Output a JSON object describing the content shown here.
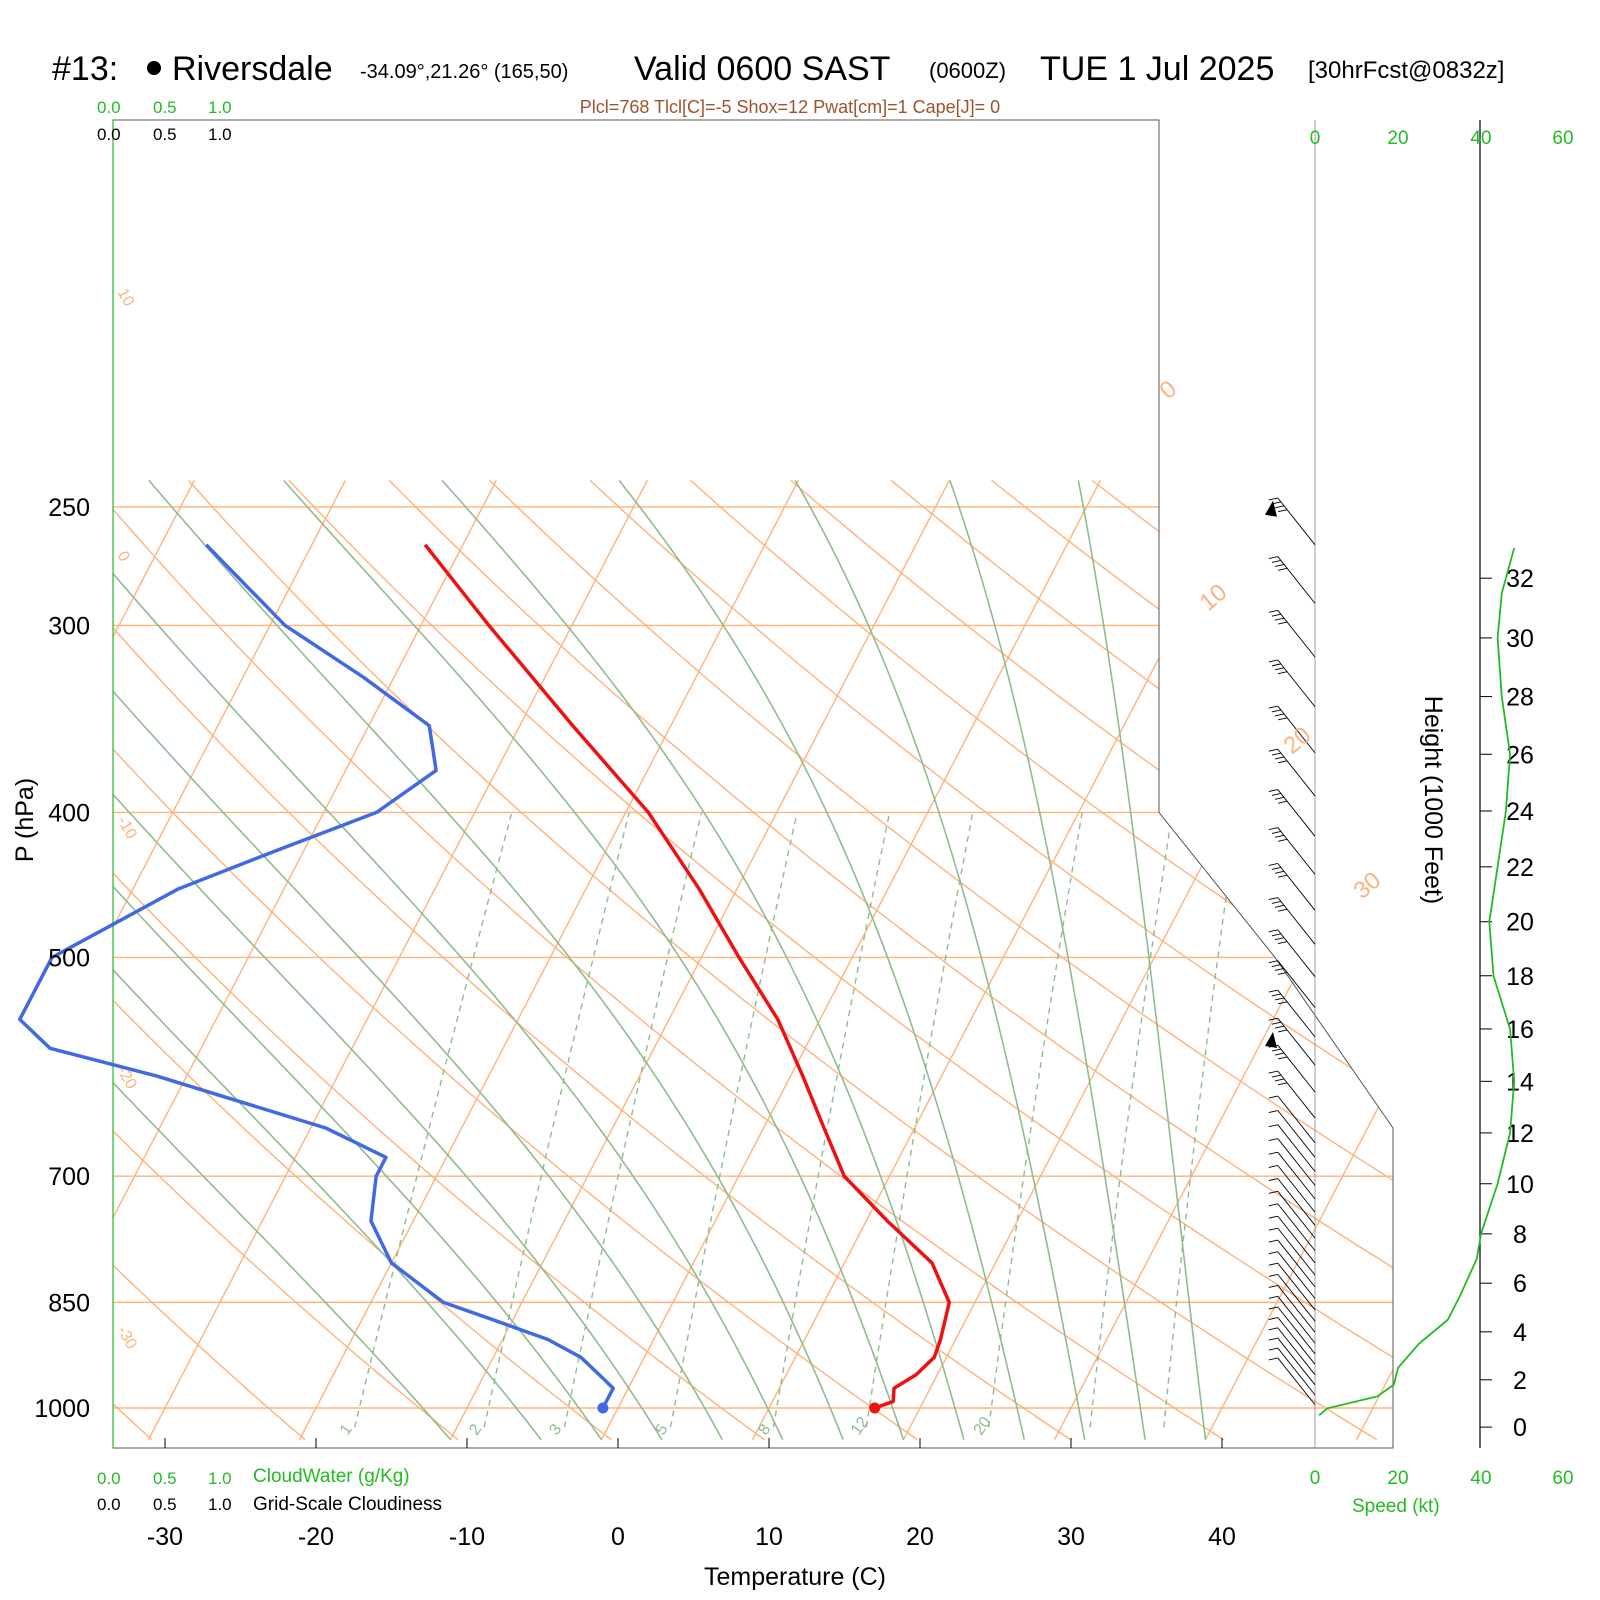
{
  "header": {
    "station_num": "#13:",
    "station_name": "Riversdale",
    "coords": "-34.09°,21.26° (165,50)",
    "valid": "Valid 0600 SAST",
    "zulu": "(0600Z)",
    "date": "TUE 1 Jul 2025",
    "fcst": "[30hrFcst@0832z]",
    "indices": "Plcl=768 Tlcl[C]=-5 Shox=12 Pwat[cm]=1 Cape[J]= 0"
  },
  "labels": {
    "pressure_axis": "P (hPa)",
    "temperature_axis": "Temperature (C)",
    "height_axis": "Height (1000 Feet)",
    "speed_axis": "Speed (kt)",
    "cloud_water": "CloudWater (g/Kg)",
    "cloudiness": "Grid-Scale Cloudiness",
    "scale_green": [
      "0.0",
      "0.5",
      "1.0"
    ],
    "scale_black": [
      "0.0",
      "0.5",
      "1.0"
    ],
    "speed_ticks": [
      "0",
      "20",
      "40",
      "60"
    ]
  },
  "colors": {
    "temperature": "#ee1111",
    "dewpoint": "#4169e1",
    "isotherm": "#ffb27a",
    "adiabat": "#8fbc8f",
    "mixing_ratio": "#8fbc8f",
    "wind_speed": "#22bb22",
    "indices_text": "#a0522d"
  },
  "chart_data": {
    "type": "skew-t",
    "pressure_levels": [
      250,
      300,
      400,
      500,
      700,
      850,
      1000
    ],
    "temperature_ticks": [
      -30,
      -20,
      -10,
      0,
      10,
      20,
      30,
      40
    ],
    "isotherm_labels": [
      "10",
      "0",
      "-10",
      "-20",
      "-30",
      "0",
      "10",
      "20",
      "30"
    ],
    "mixing_ratio_labels": [
      "1",
      "2",
      "3",
      "5",
      "8",
      "12",
      "20"
    ],
    "height_ticks_kft": [
      0,
      2,
      4,
      6,
      8,
      10,
      12,
      14,
      16,
      18,
      20,
      22,
      24,
      26,
      28,
      30,
      32
    ],
    "temperature_profile": [
      {
        "p": 1000,
        "t": 17.0
      },
      {
        "p": 990,
        "t": 18.0
      },
      {
        "p": 970,
        "t": 17.6
      },
      {
        "p": 950,
        "t": 18.6
      },
      {
        "p": 925,
        "t": 19.2
      },
      {
        "p": 900,
        "t": 19.0
      },
      {
        "p": 850,
        "t": 18.3
      },
      {
        "p": 800,
        "t": 15.8
      },
      {
        "p": 750,
        "t": 11.4
      },
      {
        "p": 700,
        "t": 7.0
      },
      {
        "p": 650,
        "t": 4.0
      },
      {
        "p": 600,
        "t": 0.8
      },
      {
        "p": 550,
        "t": -2.8
      },
      {
        "p": 500,
        "t": -7.5
      },
      {
        "p": 450,
        "t": -12.5
      },
      {
        "p": 400,
        "t": -18.5
      },
      {
        "p": 350,
        "t": -26.5
      },
      {
        "p": 300,
        "t": -35.5
      },
      {
        "p": 265,
        "t": -42.5
      }
    ],
    "dewpoint_profile": [
      {
        "p": 1000,
        "td": -1.0
      },
      {
        "p": 970,
        "td": -1.0
      },
      {
        "p": 950,
        "td": -2.4
      },
      {
        "p": 925,
        "td": -4.2
      },
      {
        "p": 900,
        "td": -7.0
      },
      {
        "p": 875,
        "td": -11.0
      },
      {
        "p": 850,
        "td": -15.2
      },
      {
        "p": 800,
        "td": -20.0
      },
      {
        "p": 750,
        "td": -22.8
      },
      {
        "p": 700,
        "td": -24.0
      },
      {
        "p": 680,
        "td": -24.0
      },
      {
        "p": 650,
        "td": -29.0
      },
      {
        "p": 600,
        "td": -42.0
      },
      {
        "p": 575,
        "td": -50.0
      },
      {
        "p": 550,
        "td": -53.0
      },
      {
        "p": 500,
        "td": -53.0
      },
      {
        "p": 450,
        "td": -47.0
      },
      {
        "p": 425,
        "td": -42.0
      },
      {
        "p": 400,
        "td": -36.5
      },
      {
        "p": 375,
        "td": -34.0
      },
      {
        "p": 350,
        "td": -36.0
      },
      {
        "p": 325,
        "td": -42.0
      },
      {
        "p": 300,
        "td": -49.0
      },
      {
        "p": 265,
        "td": -57.0
      }
    ],
    "wind_speed_profile": [
      {
        "h": 0.5,
        "kt": 1
      },
      {
        "h": 0.8,
        "kt": 3
      },
      {
        "h": 1.3,
        "kt": 15
      },
      {
        "h": 1.8,
        "kt": 19
      },
      {
        "h": 2.5,
        "kt": 20
      },
      {
        "h": 3.5,
        "kt": 25
      },
      {
        "h": 4.5,
        "kt": 32
      },
      {
        "h": 5.5,
        "kt": 35
      },
      {
        "h": 7,
        "kt": 39
      },
      {
        "h": 8,
        "kt": 40
      },
      {
        "h": 10,
        "kt": 44
      },
      {
        "h": 12,
        "kt": 47
      },
      {
        "h": 14,
        "kt": 48
      },
      {
        "h": 16,
        "kt": 47
      },
      {
        "h": 18,
        "kt": 43
      },
      {
        "h": 20,
        "kt": 42
      },
      {
        "h": 22,
        "kt": 44
      },
      {
        "h": 24,
        "kt": 46
      },
      {
        "h": 26,
        "kt": 47
      },
      {
        "h": 28,
        "kt": 45
      },
      {
        "h": 30,
        "kt": 44
      },
      {
        "h": 31.5,
        "kt": 45
      },
      {
        "h": 33,
        "kt": 48
      }
    ]
  }
}
